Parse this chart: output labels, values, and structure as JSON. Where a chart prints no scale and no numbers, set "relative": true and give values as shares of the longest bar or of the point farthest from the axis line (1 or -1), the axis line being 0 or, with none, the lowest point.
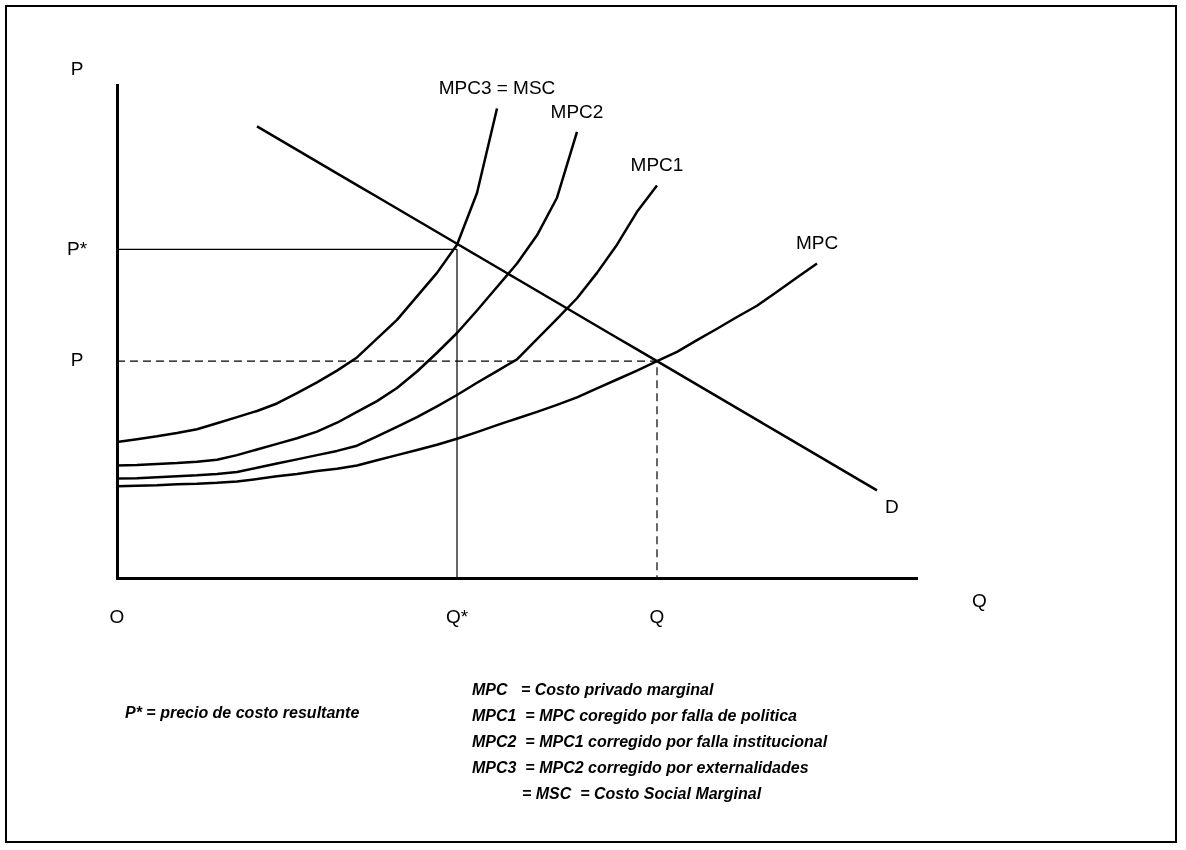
{
  "chart_data": {
    "type": "line",
    "relative": true,
    "xlabel": "Q",
    "ylabel": "P",
    "tick_labels": "x",
    "grid": false,
    "legend": false,
    "marker": "none",
    "categories": [
      "O",
      null,
      null,
      null,
      null,
      null,
      null,
      null,
      null,
      null,
      null,
      null,
      null,
      null,
      null,
      null,
      null,
      "Q*",
      null,
      null,
      null,
      null,
      null,
      null,
      null,
      null,
      null,
      "Q",
      null,
      null,
      null,
      null,
      null,
      null,
      null,
      null,
      null,
      null,
      null,
      null,
      null
    ],
    "series": [
      {
        "name": "MPC3 = MSC",
        "color": "#000000",
        "line_style": "solid",
        "values": [
          0.29,
          0.296,
          0.302,
          0.309,
          0.317,
          0.33,
          0.343,
          0.356,
          0.372,
          0.394,
          0.417,
          0.442,
          0.47,
          0.51,
          0.55,
          0.6,
          0.65,
          0.71,
          0.82,
          1.0,
          null,
          null,
          null,
          null,
          null,
          null,
          null,
          null,
          null,
          null,
          null,
          null,
          null,
          null,
          null,
          null,
          null,
          null,
          null,
          null,
          null
        ]
      },
      {
        "name": "MPC2",
        "color": "#000000",
        "line_style": "solid",
        "values": [
          0.24,
          0.241,
          0.243,
          0.245,
          0.248,
          0.252,
          0.262,
          0.274,
          0.286,
          0.298,
          0.312,
          0.331,
          0.354,
          0.377,
          0.405,
          0.44,
          0.48,
          0.522,
          0.57,
          0.62,
          0.67,
          0.73,
          0.81,
          0.95,
          null,
          null,
          null,
          null,
          null,
          null,
          null,
          null,
          null,
          null,
          null,
          null,
          null,
          null,
          null,
          null,
          null
        ]
      },
      {
        "name": "MPC1",
        "color": "#000000",
        "line_style": "solid",
        "values": [
          0.212,
          0.213,
          0.215,
          0.217,
          0.219,
          0.222,
          0.226,
          0.235,
          0.244,
          0.253,
          0.262,
          0.271,
          0.282,
          0.302,
          0.322,
          0.343,
          0.366,
          0.39,
          0.416,
          0.441,
          0.466,
          0.509,
          0.552,
          0.596,
          0.65,
          0.71,
          0.78,
          0.836,
          null,
          null,
          null,
          null,
          null,
          null,
          null,
          null,
          null,
          null,
          null,
          null,
          null
        ]
      },
      {
        "name": "MPC",
        "color": "#000000",
        "line_style": "solid",
        "values": [
          0.196,
          0.197,
          0.198,
          0.2,
          0.201,
          0.203,
          0.206,
          0.211,
          0.217,
          0.222,
          0.228,
          0.233,
          0.24,
          0.251,
          0.262,
          0.273,
          0.284,
          0.297,
          0.311,
          0.326,
          0.34,
          0.354,
          0.369,
          0.385,
          0.404,
          0.423,
          0.442,
          0.462,
          0.482,
          0.507,
          0.531,
          0.556,
          0.58,
          0.61,
          0.64,
          0.67,
          null,
          null,
          null,
          null,
          null
        ]
      },
      {
        "name": "D",
        "color": "#000000",
        "line_style": "solid",
        "values": [
          null,
          null,
          null,
          null,
          null,
          null,
          null,
          0.962,
          0.937,
          0.912,
          0.887,
          0.862,
          0.837,
          0.812,
          0.787,
          0.762,
          0.737,
          0.712,
          0.687,
          0.662,
          0.637,
          0.612,
          0.587,
          0.562,
          0.537,
          0.512,
          0.487,
          0.462,
          0.437,
          0.412,
          0.387,
          0.362,
          0.337,
          0.312,
          0.287,
          0.262,
          0.237,
          0.212,
          0.187,
          null,
          null
        ]
      },
      {
        "color": "#000000",
        "line_style": "solid",
        "x": [
          "O",
          "Q*",
          "Q*"
        ],
        "values": [
          0.7,
          0.7,
          0
        ]
      },
      {
        "color": "#000000",
        "line_style": "dashed",
        "x": [
          "O",
          "Q",
          "Q"
        ],
        "values": [
          0.462,
          0.462,
          0
        ]
      }
    ],
    "annotations": [
      {
        "text": "P*",
        "x": "O",
        "y": 0.7
      },
      {
        "text": "P",
        "x": "O",
        "y": 0.462
      },
      "P* = precio de costo resultante",
      "MPC   = Costo privado marginal",
      "MPC1  = MPC coregido por falla de politica",
      "MPC2  = MPC1 corregido por falla institucional",
      "MPC3  = MPC2 corregido por externalidades",
      "= MSC  = Costo Social Marginal"
    ]
  }
}
